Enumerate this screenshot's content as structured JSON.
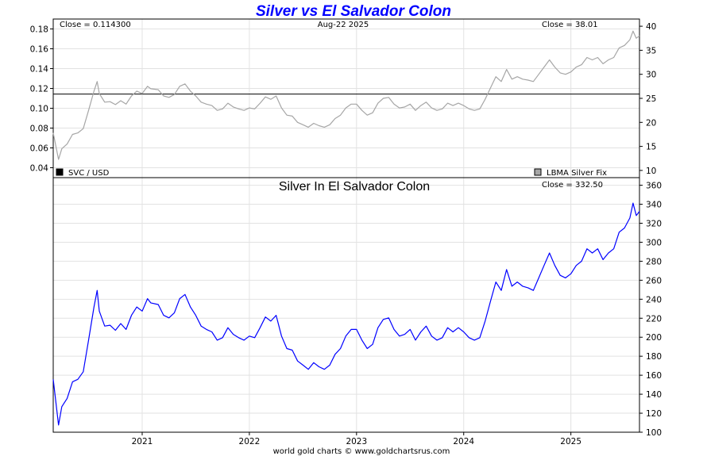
{
  "title": "Silver vs El Salvador Colon",
  "footer": "world gold charts © www.goldchartsrus.com",
  "chart_data": [
    {
      "type": "line",
      "header": {
        "left": "Close = 0.114300",
        "center": "Aug-22  2025",
        "right": "Close = 38.01"
      },
      "legend": {
        "left": "SVC / USD",
        "right": "LBMA Silver Fix",
        "left_color": "#000000",
        "right_color": "#a6a6a6",
        "placement": "bottom"
      },
      "ylim_left": [
        0.03,
        0.19
      ],
      "yticks_left": [
        "0.18",
        "0.16",
        "0.14",
        "0.12",
        "0.10",
        "0.08",
        "0.06",
        "0.04"
      ],
      "ylim_right": [
        8.5,
        41.5
      ],
      "yticks_right": [
        "40",
        "35",
        "30",
        "25",
        "20",
        "15",
        "10"
      ],
      "xlim": [
        2020.17,
        2025.64
      ],
      "grid": true,
      "series": [
        {
          "name": "SVC / USD",
          "axis": "left",
          "color": "#000000",
          "x": [
            2020.17,
            2025.64
          ],
          "y": [
            0.1143,
            0.1143
          ]
        },
        {
          "name": "LBMA Silver Fix",
          "axis": "right",
          "color": "#a6a6a6",
          "x": [
            2020.17,
            2020.2,
            2020.22,
            2020.25,
            2020.3,
            2020.35,
            2020.4,
            2020.45,
            2020.5,
            2020.55,
            2020.58,
            2020.6,
            2020.65,
            2020.7,
            2020.75,
            2020.8,
            2020.85,
            2020.9,
            2020.95,
            2021.0,
            2021.05,
            2021.08,
            2021.15,
            2021.2,
            2021.25,
            2021.3,
            2021.35,
            2021.4,
            2021.45,
            2021.5,
            2021.55,
            2021.6,
            2021.65,
            2021.7,
            2021.75,
            2021.8,
            2021.85,
            2021.9,
            2021.95,
            2022.0,
            2022.05,
            2022.1,
            2022.15,
            2022.2,
            2022.25,
            2022.3,
            2022.35,
            2022.4,
            2022.45,
            2022.5,
            2022.55,
            2022.6,
            2022.65,
            2022.7,
            2022.75,
            2022.8,
            2022.85,
            2022.9,
            2022.95,
            2023.0,
            2023.05,
            2023.1,
            2023.15,
            2023.2,
            2023.25,
            2023.3,
            2023.35,
            2023.4,
            2023.45,
            2023.5,
            2023.55,
            2023.6,
            2023.65,
            2023.7,
            2023.75,
            2023.8,
            2023.85,
            2023.9,
            2023.95,
            2024.0,
            2024.05,
            2024.1,
            2024.15,
            2024.2,
            2024.25,
            2024.3,
            2024.35,
            2024.4,
            2024.45,
            2024.5,
            2024.55,
            2024.6,
            2024.65,
            2024.7,
            2024.75,
            2024.8,
            2024.85,
            2024.9,
            2024.95,
            2025.0,
            2025.05,
            2025.1,
            2025.15,
            2025.2,
            2025.25,
            2025.3,
            2025.35,
            2025.4,
            2025.45,
            2025.5,
            2025.55,
            2025.58,
            2025.61,
            2025.64
          ],
          "y": [
            17.8,
            14.5,
            12.3,
            14.5,
            15.5,
            17.5,
            17.8,
            18.7,
            22.5,
            26.5,
            28.5,
            26.0,
            24.2,
            24.3,
            23.7,
            24.5,
            23.8,
            25.5,
            26.5,
            26.0,
            27.5,
            27.0,
            26.8,
            25.5,
            25.2,
            25.8,
            27.5,
            28.0,
            26.5,
            25.5,
            24.2,
            23.8,
            23.5,
            22.5,
            22.8,
            24.0,
            23.2,
            22.8,
            22.5,
            23.0,
            22.8,
            24.0,
            25.3,
            24.8,
            25.5,
            23.0,
            21.5,
            21.3,
            20.0,
            19.5,
            19.0,
            19.8,
            19.3,
            19.0,
            19.5,
            20.8,
            21.5,
            23.0,
            23.8,
            23.8,
            22.5,
            21.5,
            22.0,
            24.0,
            25.0,
            25.2,
            23.8,
            23.0,
            23.2,
            23.8,
            22.5,
            23.5,
            24.2,
            23.0,
            22.5,
            22.8,
            24.0,
            23.5,
            24.0,
            23.5,
            22.8,
            22.5,
            22.8,
            24.8,
            27.2,
            29.5,
            28.5,
            31.0,
            29.0,
            29.5,
            29.0,
            28.8,
            28.5,
            30.0,
            31.5,
            33.0,
            31.5,
            30.3,
            30.0,
            30.5,
            31.5,
            32.0,
            33.5,
            33.0,
            33.5,
            32.2,
            33.0,
            33.5,
            35.5,
            36.0,
            37.2,
            39.0,
            37.5,
            38.0
          ]
        }
      ]
    },
    {
      "type": "line",
      "subtitle": "Silver In El Salvador Colon",
      "header": {
        "right": "Close = 332.50"
      },
      "ylim": [
        100,
        368
      ],
      "yticks": [
        "360",
        "340",
        "320",
        "300",
        "280",
        "260",
        "240",
        "220",
        "200",
        "180",
        "160",
        "140",
        "120",
        "100"
      ],
      "xlim": [
        2020.17,
        2025.64
      ],
      "xticks": [
        "2021",
        "2022",
        "2023",
        "2024",
        "2025"
      ],
      "grid": true,
      "series": [
        {
          "name": "Silver In El Salvador Colon",
          "color": "#0000ff",
          "x": [
            2020.17,
            2020.2,
            2020.22,
            2020.25,
            2020.3,
            2020.35,
            2020.4,
            2020.45,
            2020.5,
            2020.55,
            2020.58,
            2020.6,
            2020.65,
            2020.7,
            2020.75,
            2020.8,
            2020.85,
            2020.9,
            2020.95,
            2021.0,
            2021.05,
            2021.08,
            2021.15,
            2021.2,
            2021.25,
            2021.3,
            2021.35,
            2021.4,
            2021.45,
            2021.5,
            2021.55,
            2021.6,
            2021.65,
            2021.7,
            2021.75,
            2021.8,
            2021.85,
            2021.9,
            2021.95,
            2022.0,
            2022.05,
            2022.1,
            2022.15,
            2022.2,
            2022.25,
            2022.3,
            2022.35,
            2022.4,
            2022.45,
            2022.5,
            2022.55,
            2022.6,
            2022.65,
            2022.7,
            2022.75,
            2022.8,
            2022.85,
            2022.9,
            2022.95,
            2023.0,
            2023.05,
            2023.1,
            2023.15,
            2023.2,
            2023.25,
            2023.3,
            2023.35,
            2023.4,
            2023.45,
            2023.5,
            2023.55,
            2023.6,
            2023.65,
            2023.7,
            2023.75,
            2023.8,
            2023.85,
            2023.9,
            2023.95,
            2024.0,
            2024.05,
            2024.1,
            2024.15,
            2024.2,
            2024.25,
            2024.3,
            2024.35,
            2024.4,
            2024.45,
            2024.5,
            2024.55,
            2024.6,
            2024.65,
            2024.7,
            2024.75,
            2024.8,
            2024.85,
            2024.9,
            2024.95,
            2025.0,
            2025.05,
            2025.1,
            2025.15,
            2025.2,
            2025.25,
            2025.3,
            2025.35,
            2025.4,
            2025.45,
            2025.5,
            2025.55,
            2025.58,
            2025.61,
            2025.64
          ],
          "y": [
            155.7,
            126.9,
            107.6,
            126.9,
            135.6,
            153.1,
            155.7,
            163.6,
            196.9,
            231.8,
            249.3,
            227.5,
            211.7,
            212.6,
            207.3,
            214.4,
            208.2,
            223.1,
            231.8,
            227.5,
            240.6,
            236.2,
            234.4,
            223.1,
            220.4,
            225.7,
            240.6,
            245.0,
            231.8,
            223.1,
            211.7,
            208.2,
            205.6,
            196.9,
            199.5,
            210.0,
            203.0,
            199.5,
            196.9,
            201.2,
            199.5,
            210.0,
            221.3,
            217.0,
            223.1,
            201.2,
            188.1,
            186.4,
            175.0,
            170.6,
            166.2,
            173.2,
            168.9,
            166.2,
            170.6,
            182.0,
            188.1,
            201.2,
            208.2,
            208.2,
            196.9,
            188.1,
            192.5,
            210.0,
            218.7,
            220.4,
            208.2,
            201.2,
            203.0,
            208.2,
            196.9,
            205.6,
            211.7,
            201.2,
            196.9,
            199.5,
            210.0,
            205.6,
            210.0,
            205.6,
            199.5,
            196.9,
            199.5,
            217.0,
            238.0,
            258.1,
            249.3,
            271.2,
            253.7,
            258.1,
            253.7,
            252.0,
            249.3,
            262.5,
            275.6,
            288.7,
            275.6,
            265.1,
            262.5,
            266.8,
            275.6,
            280.0,
            293.1,
            288.7,
            293.1,
            281.7,
            288.7,
            293.1,
            310.6,
            315.0,
            325.5,
            341.2,
            328.1,
            332.5
          ]
        }
      ]
    }
  ]
}
